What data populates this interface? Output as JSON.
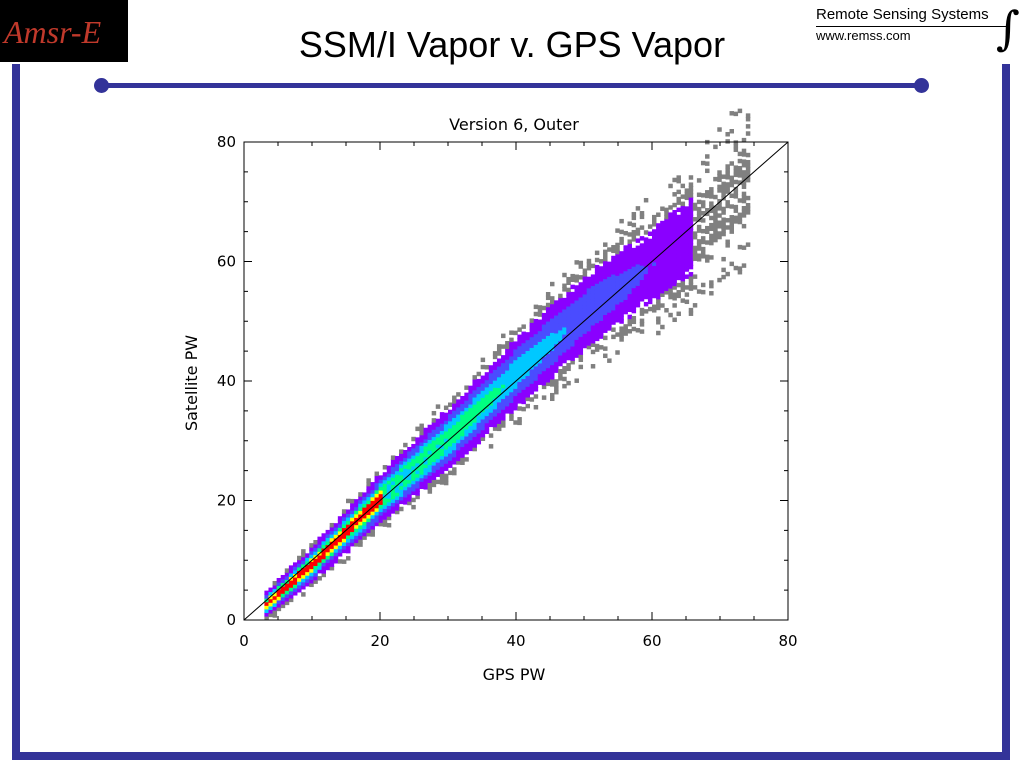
{
  "slide": {
    "title": "SSM/I Vapor v. GPS Vapor",
    "logo_text": "Amsr-E",
    "org_name": "Remote Sensing Systems",
    "org_url": "www.remss.com",
    "frame_color": "#333399"
  },
  "chart_data": {
    "type": "heatmap",
    "title": "Version 6, Outer",
    "xlabel": "GPS PW",
    "ylabel": "Satellite PW",
    "xlim": [
      0,
      80
    ],
    "ylim": [
      0,
      80
    ],
    "xticks": [
      "0",
      "20",
      "40",
      "60",
      "80"
    ],
    "yticks": [
      "0",
      "20",
      "40",
      "60",
      "80"
    ],
    "reference_line": "one-to-one",
    "color_scale": [
      "#808080",
      "#8a00ff",
      "#4a4cff",
      "#00c8ff",
      "#00ff80",
      "#ffff00",
      "#ff0000"
    ],
    "density_ridge": [
      {
        "x": 4,
        "y": 4
      },
      {
        "x": 10,
        "y": 10
      },
      {
        "x": 20,
        "y": 21
      },
      {
        "x": 30,
        "y": 31
      },
      {
        "x": 40,
        "y": 42
      },
      {
        "x": 50,
        "y": 52
      },
      {
        "x": 60,
        "y": 60
      },
      {
        "x": 66,
        "y": 65
      }
    ]
  }
}
